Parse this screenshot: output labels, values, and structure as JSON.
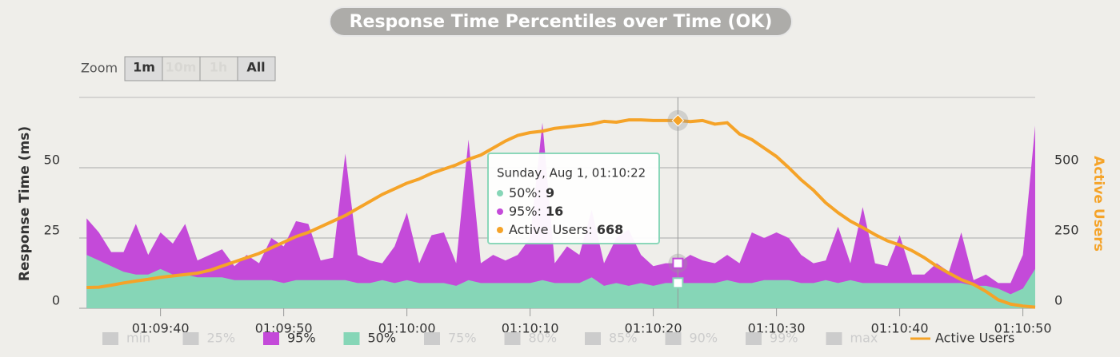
{
  "chart_data": {
    "type": "area",
    "title": "Response Time Percentiles over Time (OK)",
    "zoom": {
      "label": "Zoom",
      "buttons": [
        "1m",
        "10m",
        "1h",
        "All"
      ]
    },
    "y_label": "Response Time (ms)",
    "y2_label": "Active Users",
    "x": [
      "01:09:34",
      "01:09:35",
      "01:09:36",
      "01:09:37",
      "01:09:38",
      "01:09:39",
      "01:09:40",
      "01:09:41",
      "01:09:42",
      "01:09:43",
      "01:09:44",
      "01:09:45",
      "01:09:46",
      "01:09:47",
      "01:09:48",
      "01:09:49",
      "01:09:50",
      "01:09:51",
      "01:09:52",
      "01:09:53",
      "01:09:54",
      "01:09:55",
      "01:09:56",
      "01:09:57",
      "01:09:58",
      "01:09:59",
      "01:10:00",
      "01:10:01",
      "01:10:02",
      "01:10:03",
      "01:10:04",
      "01:10:05",
      "01:10:06",
      "01:10:07",
      "01:10:08",
      "01:10:09",
      "01:10:10",
      "01:10:11",
      "01:10:12",
      "01:10:13",
      "01:10:14",
      "01:10:15",
      "01:10:16",
      "01:10:17",
      "01:10:18",
      "01:10:19",
      "01:10:20",
      "01:10:21",
      "01:10:22",
      "01:10:23",
      "01:10:24",
      "01:10:25",
      "01:10:26",
      "01:10:27",
      "01:10:28",
      "01:10:29",
      "01:10:30",
      "01:10:31",
      "01:10:32",
      "01:10:33",
      "01:10:34",
      "01:10:35",
      "01:10:36",
      "01:10:37",
      "01:10:38",
      "01:10:39",
      "01:10:40",
      "01:10:41",
      "01:10:42",
      "01:10:43",
      "01:10:44",
      "01:10:45",
      "01:10:46",
      "01:10:47",
      "01:10:48",
      "01:10:49",
      "01:10:50",
      "01:10:51"
    ],
    "xticks": [
      "01:09:40",
      "01:09:50",
      "01:10:00",
      "01:10:10",
      "01:10:20",
      "01:10:30",
      "01:10:40",
      "01:10:50"
    ],
    "ylim": [
      0,
      75
    ],
    "yticks": [
      0,
      25,
      50
    ],
    "y2lim": [
      0,
      750
    ],
    "y2ticks": [
      0,
      250,
      500
    ],
    "grid": true,
    "series": [
      {
        "name": "min",
        "color": "#cccccc",
        "visible": false
      },
      {
        "name": "25%",
        "color": "#cccccc",
        "visible": false
      },
      {
        "name": "95%",
        "color": "#c44ad9",
        "visible": true,
        "type": "area",
        "values": [
          32,
          27,
          20,
          20,
          30,
          19,
          27,
          23,
          30,
          17,
          19,
          21,
          15,
          19,
          16,
          25,
          22,
          31,
          30,
          17,
          18,
          55,
          19,
          17,
          16,
          22,
          34,
          16,
          26,
          27,
          16,
          60,
          16,
          19,
          17,
          19,
          25,
          66,
          16,
          22,
          19,
          35,
          16,
          25,
          28,
          19,
          15,
          16,
          16,
          19,
          17,
          16,
          19,
          16,
          27,
          25,
          27,
          25,
          19,
          16,
          17,
          29,
          16,
          36,
          16,
          15,
          26,
          12,
          12,
          16,
          13,
          27,
          10,
          12,
          9,
          9,
          19,
          65
        ]
      },
      {
        "name": "50%",
        "color": "#86d6b7",
        "visible": true,
        "type": "area",
        "values": [
          19,
          17,
          15,
          13,
          12,
          12,
          14,
          12,
          12,
          11,
          11,
          11,
          10,
          10,
          10,
          10,
          9,
          10,
          10,
          10,
          10,
          10,
          9,
          9,
          10,
          9,
          10,
          9,
          9,
          9,
          8,
          10,
          9,
          9,
          9,
          9,
          9,
          10,
          9,
          9,
          9,
          11,
          8,
          9,
          8,
          9,
          8,
          9,
          9,
          9,
          9,
          9,
          10,
          9,
          9,
          10,
          10,
          10,
          9,
          9,
          10,
          9,
          10,
          9,
          9,
          9,
          9,
          9,
          9,
          9,
          9,
          9,
          8,
          8,
          7,
          5,
          7,
          14
        ]
      },
      {
        "name": "75%",
        "color": "#cccccc",
        "visible": false
      },
      {
        "name": "80%",
        "color": "#cccccc",
        "visible": false
      },
      {
        "name": "85%",
        "color": "#cccccc",
        "visible": false
      },
      {
        "name": "90%",
        "color": "#cccccc",
        "visible": false
      },
      {
        "name": "99%",
        "color": "#cccccc",
        "visible": false
      },
      {
        "name": "max",
        "color": "#cccccc",
        "visible": false
      },
      {
        "name": "Active Users",
        "color": "#f5a328",
        "visible": true,
        "type": "line",
        "axis": "y2",
        "values": [
          74,
          75,
          82,
          90,
          97,
          103,
          110,
          115,
          120,
          125,
          135,
          150,
          165,
          180,
          195,
          215,
          235,
          255,
          270,
          290,
          310,
          330,
          355,
          380,
          405,
          425,
          445,
          460,
          480,
          495,
          510,
          530,
          545,
          570,
          595,
          615,
          625,
          630,
          640,
          645,
          650,
          655,
          665,
          662,
          670,
          670,
          668,
          668,
          668,
          664,
          668,
          655,
          660,
          620,
          600,
          570,
          540,
          500,
          457,
          420,
          375,
          340,
          310,
          287,
          262,
          240,
          225,
          205,
          180,
          150,
          125,
          102,
          85,
          60,
          30,
          15,
          8,
          4
        ]
      }
    ],
    "tooltip": {
      "title": "Sunday, Aug 1, 01:10:22",
      "labels": [
        "50%:",
        "95%:",
        "Active Users:"
      ]
    }
  }
}
